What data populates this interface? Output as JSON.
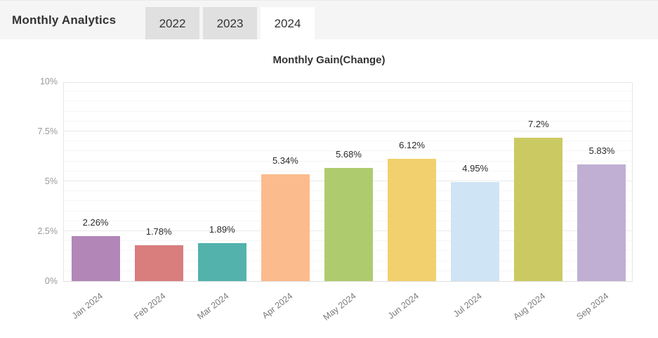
{
  "header": {
    "title": "Monthly Analytics",
    "tabs": [
      {
        "label": "2022",
        "active": false
      },
      {
        "label": "2023",
        "active": false
      },
      {
        "label": "2024",
        "active": true
      }
    ]
  },
  "chart_data": {
    "type": "bar",
    "title": "Monthly Gain(Change)",
    "categories": [
      "Jan 2024",
      "Feb 2024",
      "Mar 2024",
      "Apr 2024",
      "May 2024",
      "Jun 2024",
      "Jul 2024",
      "Aug 2024",
      "Sep 2024"
    ],
    "values": [
      2.26,
      1.78,
      1.89,
      5.34,
      5.68,
      6.12,
      4.95,
      7.2,
      5.83
    ],
    "value_labels": [
      "2.26%",
      "1.78%",
      "1.89%",
      "5.34%",
      "5.68%",
      "6.12%",
      "4.95%",
      "7.2%",
      "5.83%"
    ],
    "bar_colors": [
      "#b287b8",
      "#d97d7d",
      "#53b2ac",
      "#fbbb8d",
      "#aecc6e",
      "#f2d06d",
      "#cfe4f5",
      "#cbca62",
      "#c0aed3"
    ],
    "xlabel": "",
    "ylabel": "",
    "ylim": [
      0,
      10
    ],
    "y_ticks": [
      {
        "value": 0,
        "label": "0%"
      },
      {
        "value": 2.5,
        "label": "2.5%"
      },
      {
        "value": 5,
        "label": "5%"
      },
      {
        "value": 7.5,
        "label": "7.5%"
      },
      {
        "value": 10,
        "label": "10%"
      }
    ],
    "minor_tick_step": 0.5,
    "grid": "horizontal",
    "legend_position": "none"
  },
  "colors": {
    "header_bg": "#f5f5f5",
    "tab_bg": "#e0e0e0",
    "tab_active_bg": "#ffffff",
    "grid_major": "#e9e9e9",
    "grid_minor": "#f6f6f6",
    "axis_text": "#999999",
    "value_text": "#2b2b2b"
  }
}
